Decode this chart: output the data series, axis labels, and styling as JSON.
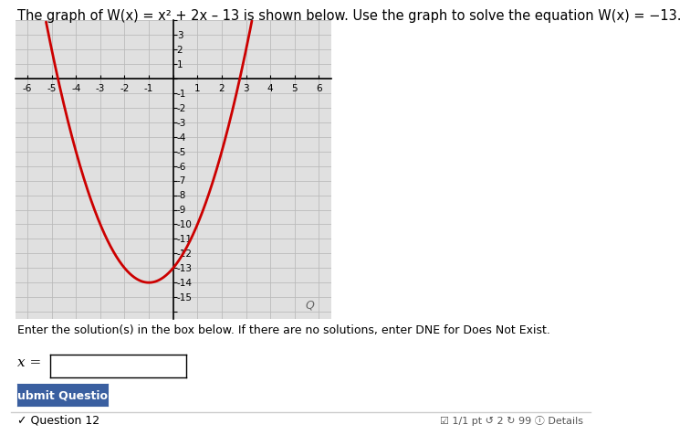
{
  "title_line1": "The graph of W(x) = x² + 2x – 13 is shown below. Use the graph to solve the equation W(x) = −13.",
  "title_fontsize": 10.5,
  "xlim": [
    -6.5,
    6.5
  ],
  "ylim": [
    -16.5,
    4.0
  ],
  "xtick_vals": [
    -6,
    -5,
    -4,
    -3,
    -2,
    -1,
    1,
    2,
    3,
    4,
    5,
    6
  ],
  "ytick_vals": [
    -15,
    -14,
    -13,
    -12,
    -11,
    -10,
    -9,
    -8,
    -7,
    -6,
    -5,
    -4,
    -3,
    -2,
    -1,
    1,
    2,
    3
  ],
  "curve_color": "#cc0000",
  "grid_color": "#bbbbbb",
  "bg_color": "#e0e0e0",
  "text_enter": "Enter the solution(s) in the box below. If there are no solutions, enter DNE for Does Not Exist.",
  "button_text": "Submit Question",
  "button_color": "#3a5fa0",
  "footer_left": "✓ Question 12",
  "footer_right": "☑ 1/1 pt ↺ 2 ↻ 99 ⓘ Details"
}
